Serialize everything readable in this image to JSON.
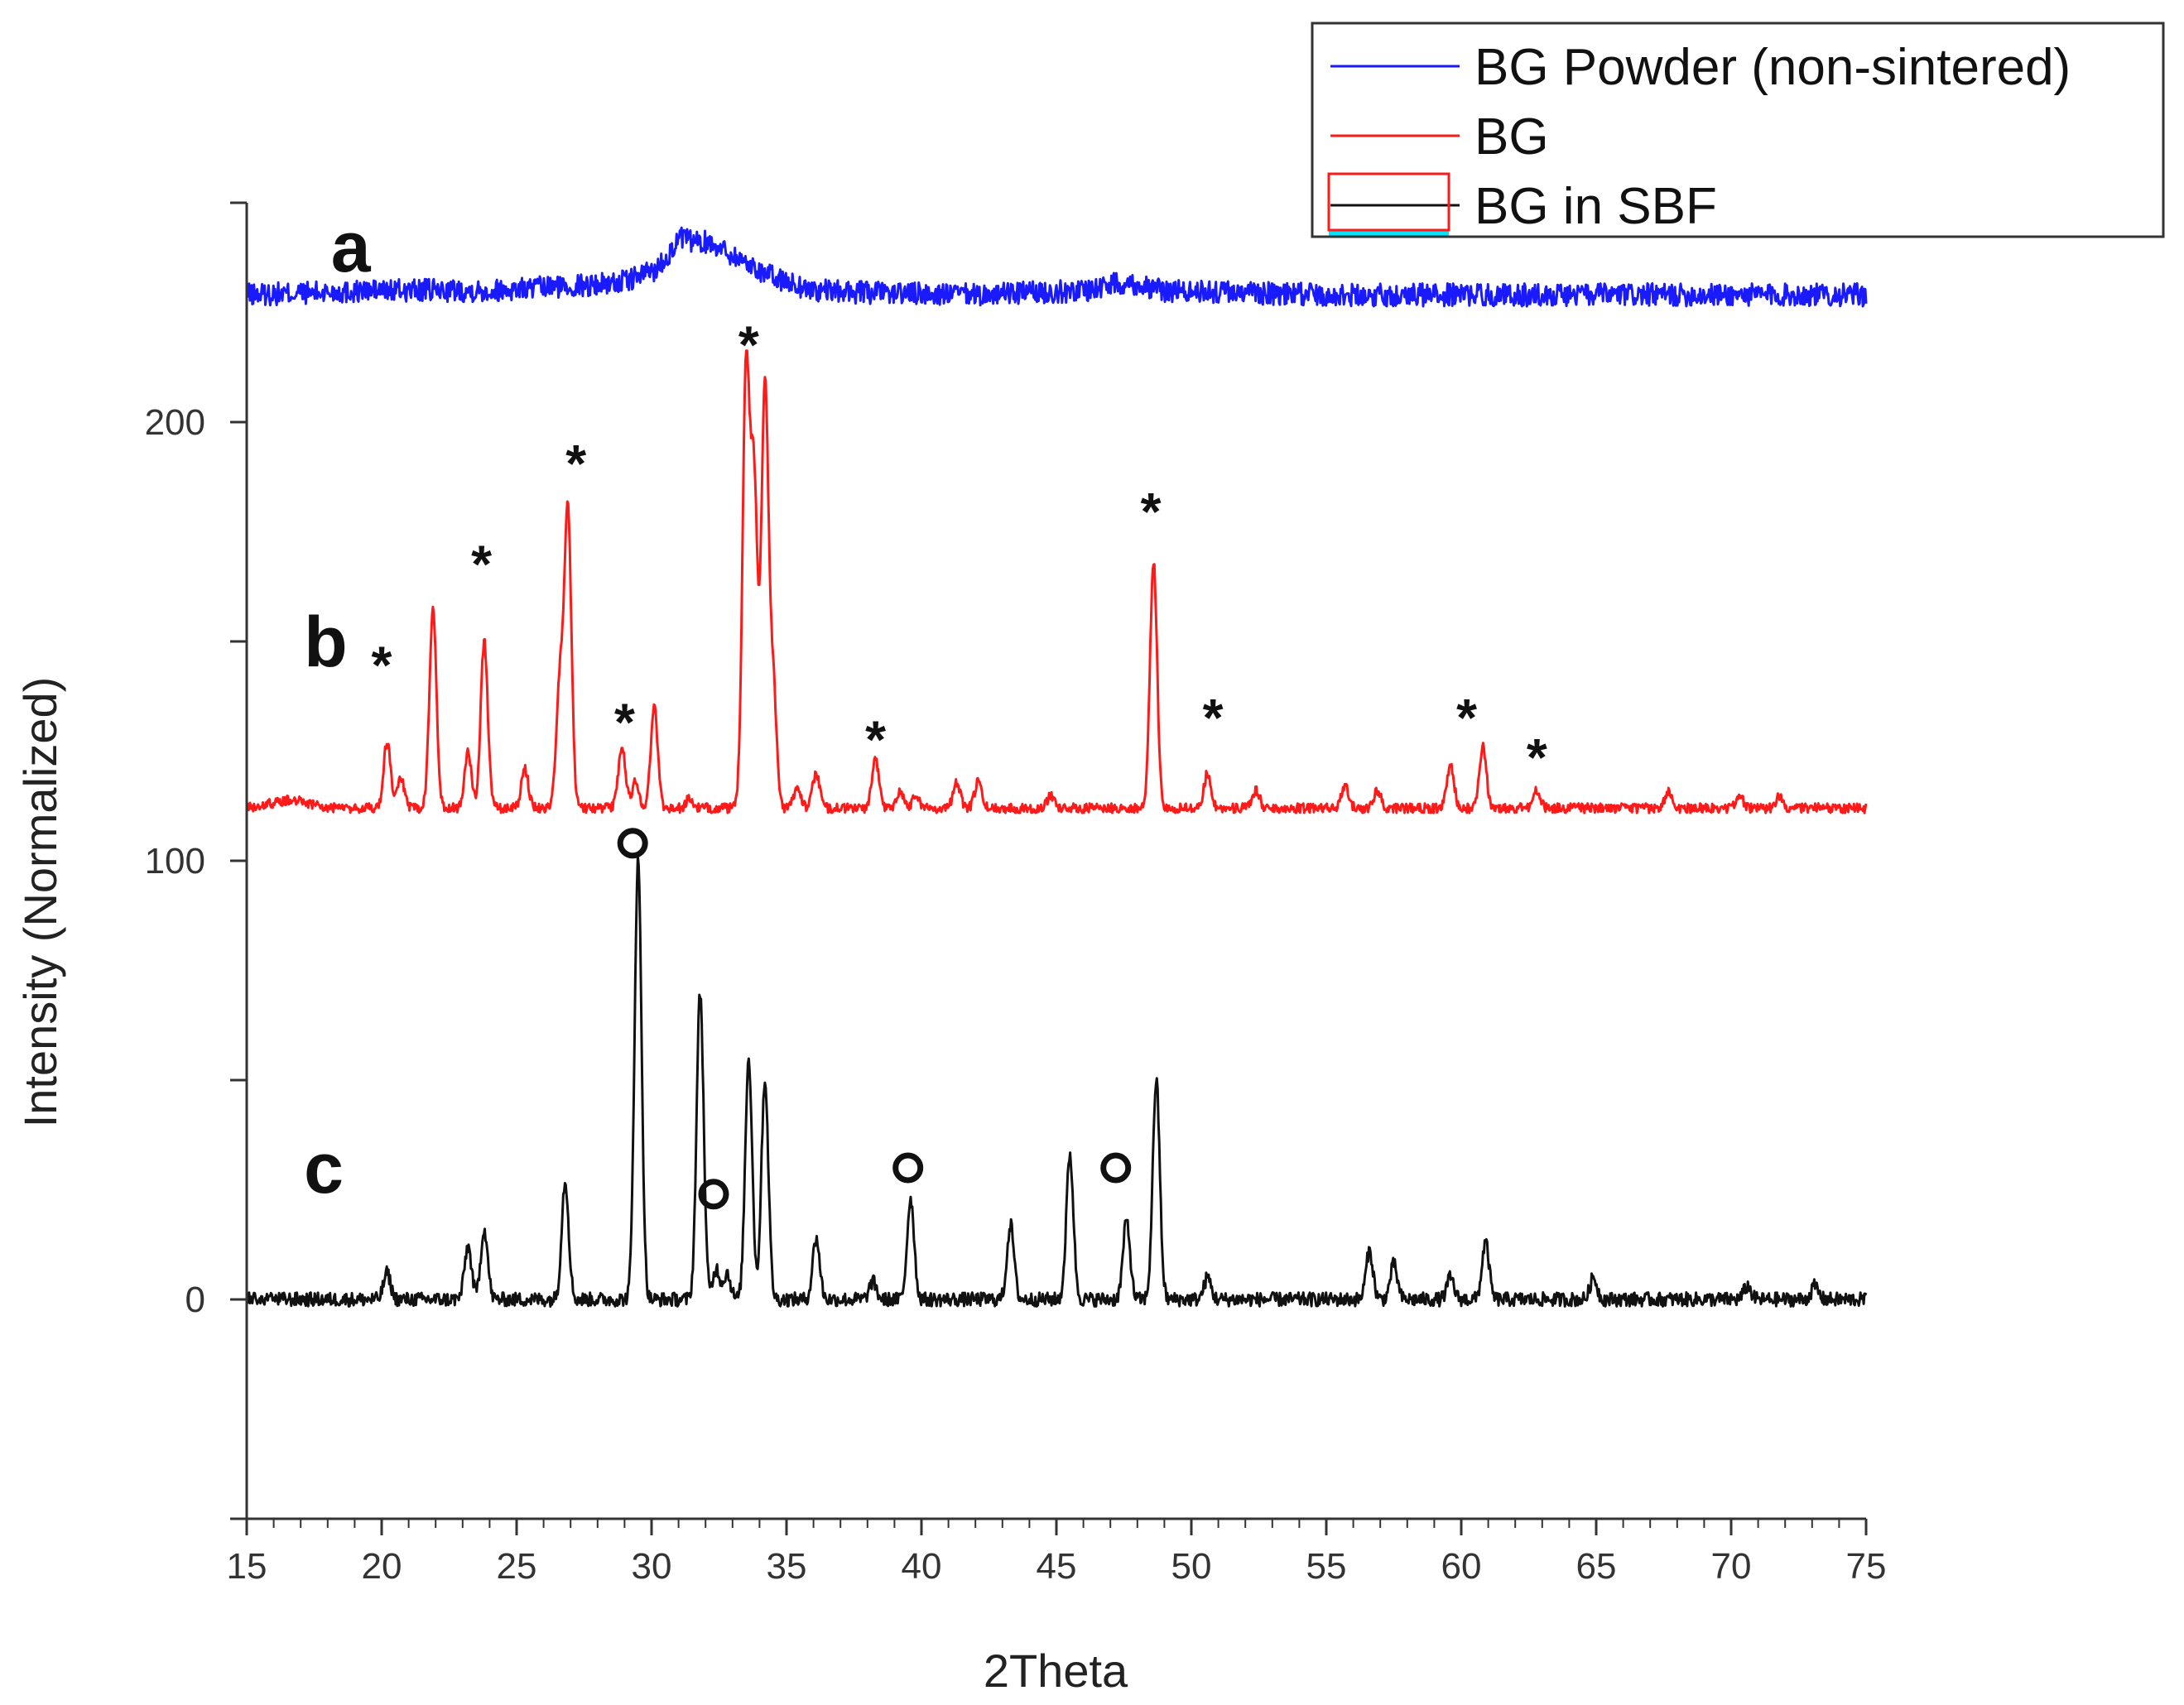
{
  "chart_data": {
    "type": "line",
    "title": "",
    "xlabel": "2Theta",
    "ylabel": "Intensity (Normalized)",
    "xlim": [
      15,
      75
    ],
    "ylim": [
      -50,
      250
    ],
    "x_ticks": [
      "15",
      "20",
      "25",
      "30",
      "35",
      "40",
      "45",
      "50",
      "55",
      "60",
      "65",
      "70",
      "75"
    ],
    "y_ticks": [
      "0",
      "100",
      "200"
    ],
    "grid": false,
    "legend_position": "top-right",
    "colors": {
      "blue": "#1a1aff",
      "red": "#ff1a1a",
      "black": "#111111",
      "accent": "#00e5ff"
    },
    "series": [
      {
        "name": "BG Powder (non-sintered)",
        "label": "a",
        "color": "#1a1aff",
        "baseline": 229,
        "noise": 2.6,
        "points": [
          [
            15,
            229
          ],
          [
            20,
            230
          ],
          [
            24,
            230
          ],
          [
            27,
            231
          ],
          [
            29,
            232
          ],
          [
            30.2,
            235
          ],
          [
            31.1,
            242
          ],
          [
            31.6,
            241
          ],
          [
            32.2,
            241
          ],
          [
            33.3,
            237
          ],
          [
            34.5,
            233
          ],
          [
            36,
            230
          ],
          [
            38,
            229.5
          ],
          [
            42,
            229
          ],
          [
            46,
            230
          ],
          [
            47.5,
            232
          ],
          [
            49,
            230
          ],
          [
            55,
            229
          ],
          [
            62,
            229
          ],
          [
            75,
            229
          ]
        ],
        "peaks": []
      },
      {
        "name": "BG",
        "label": "b",
        "color": "#ff1a1a",
        "baseline": 112,
        "noise": 1.1,
        "points": [
          [
            15,
            112
          ],
          [
            16.7,
            114
          ],
          [
            18,
            112
          ],
          [
            75,
            112
          ]
        ],
        "peaks": [
          [
            20.2,
            127
          ],
          [
            20.7,
            119
          ],
          [
            21.9,
            157
          ],
          [
            23.2,
            125
          ],
          [
            23.8,
            150
          ],
          [
            25.3,
            121
          ],
          [
            26.6,
            140
          ],
          [
            26.9,
            180
          ],
          [
            28.9,
            126
          ],
          [
            29.4,
            118
          ],
          [
            30.1,
            135
          ],
          [
            31.4,
            114
          ],
          [
            33.5,
            211
          ],
          [
            33.8,
            185
          ],
          [
            34.2,
            208
          ],
          [
            34.5,
            140
          ],
          [
            35.4,
            117
          ],
          [
            36.1,
            120
          ],
          [
            38.3,
            123
          ],
          [
            39.2,
            116
          ],
          [
            39.8,
            115
          ],
          [
            41.3,
            118
          ],
          [
            42.1,
            118
          ],
          [
            44.8,
            115
          ],
          [
            48.6,
            168
          ],
          [
            50.6,
            120
          ],
          [
            52.4,
            116
          ],
          [
            55.7,
            117
          ],
          [
            56.9,
            116
          ],
          [
            59.6,
            122
          ],
          [
            60.8,
            126
          ],
          [
            62.8,
            116
          ],
          [
            67.7,
            116
          ],
          [
            70.3,
            115
          ],
          [
            71.8,
            115
          ]
        ],
        "markers": [
          {
            "symbol": "*",
            "x": 20,
            "y": 148
          },
          {
            "symbol": "*",
            "x": 23.7,
            "y": 171
          },
          {
            "symbol": "*",
            "x": 27.2,
            "y": 194
          },
          {
            "symbol": "*",
            "x": 29,
            "y": 135
          },
          {
            "symbol": "*",
            "x": 33.6,
            "y": 221
          },
          {
            "symbol": "*",
            "x": 38.3,
            "y": 131
          },
          {
            "symbol": "*",
            "x": 48.5,
            "y": 183
          },
          {
            "symbol": "*",
            "x": 50.8,
            "y": 136
          },
          {
            "symbol": "*",
            "x": 60.2,
            "y": 136
          },
          {
            "symbol": "*",
            "x": 62.8,
            "y": 127
          }
        ]
      },
      {
        "name": "BG in SBF",
        "label": "c",
        "color": "#111111",
        "baseline": 0,
        "noise": 1.6,
        "points": [
          [
            15,
            0
          ],
          [
            75,
            0
          ]
        ],
        "peaks": [
          [
            20.2,
            6
          ],
          [
            23.2,
            12
          ],
          [
            23.8,
            16
          ],
          [
            26.8,
            27
          ],
          [
            29.5,
            100
          ],
          [
            31.8,
            70
          ],
          [
            32.4,
            7
          ],
          [
            32.8,
            6
          ],
          [
            33.6,
            55
          ],
          [
            34.2,
            50
          ],
          [
            36.1,
            14
          ],
          [
            38.2,
            4
          ],
          [
            39.6,
            23
          ],
          [
            43.3,
            17
          ],
          [
            45.5,
            33
          ],
          [
            47.6,
            18
          ],
          [
            48.7,
            50
          ],
          [
            50.6,
            5
          ],
          [
            56.6,
            11
          ],
          [
            57.5,
            8
          ],
          [
            59.6,
            5
          ],
          [
            60.9,
            13
          ],
          [
            64.9,
            5
          ],
          [
            70.6,
            3
          ],
          [
            73.1,
            3
          ]
        ],
        "markers": [
          {
            "symbol": "o",
            "x": 29.3,
            "y": 104
          },
          {
            "symbol": "o",
            "x": 32.3,
            "y": 24
          },
          {
            "symbol": "o",
            "x": 39.5,
            "y": 30
          },
          {
            "symbol": "o",
            "x": 47.2,
            "y": 30
          }
        ]
      }
    ]
  }
}
